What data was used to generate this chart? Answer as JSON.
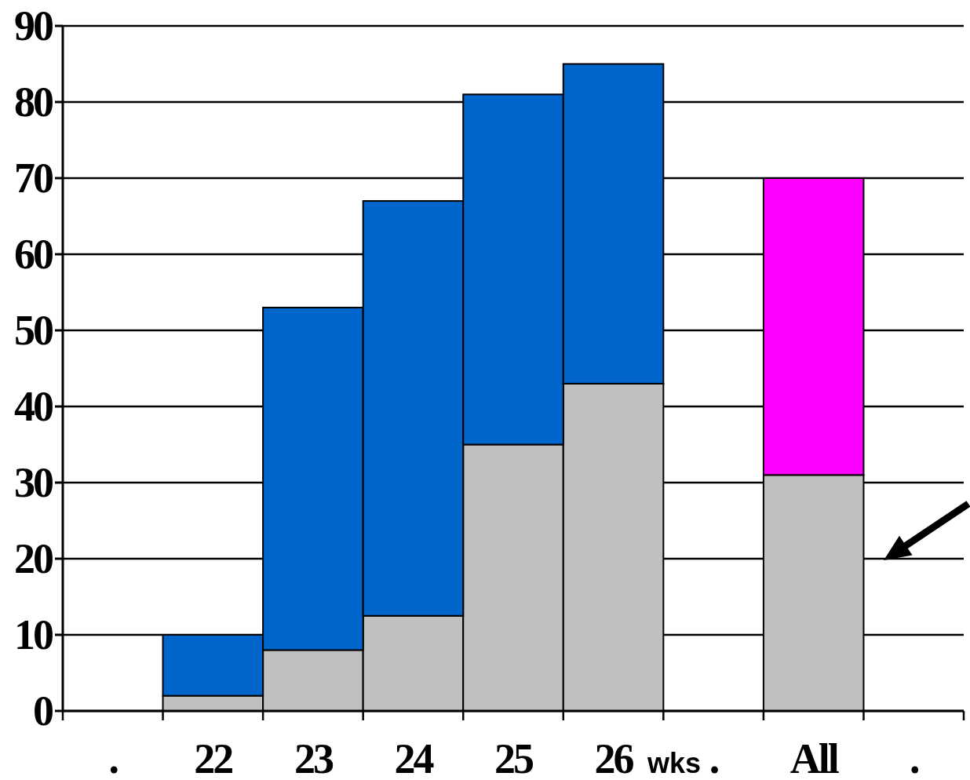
{
  "chart_data": {
    "type": "bar",
    "stacked": true,
    "categories": [
      ".",
      "22",
      "23",
      "24",
      "25",
      "26",
      ".",
      "All",
      "."
    ],
    "series": [
      {
        "color": "#c0c0c0",
        "values": [
          null,
          2,
          8,
          12.5,
          35,
          43,
          null,
          31,
          null
        ]
      },
      {
        "color": "#0066cc",
        "values": [
          null,
          8,
          45,
          54.5,
          46,
          42,
          null,
          null,
          null
        ]
      },
      {
        "color": "#ff00ff",
        "values": [
          null,
          null,
          null,
          null,
          null,
          null,
          null,
          39,
          null
        ]
      }
    ],
    "ylim": [
      0,
      90
    ],
    "yticks": [
      0,
      10,
      20,
      30,
      40,
      50,
      60,
      70,
      80,
      90
    ],
    "grid": true,
    "annotations": [
      "wks"
    ]
  }
}
